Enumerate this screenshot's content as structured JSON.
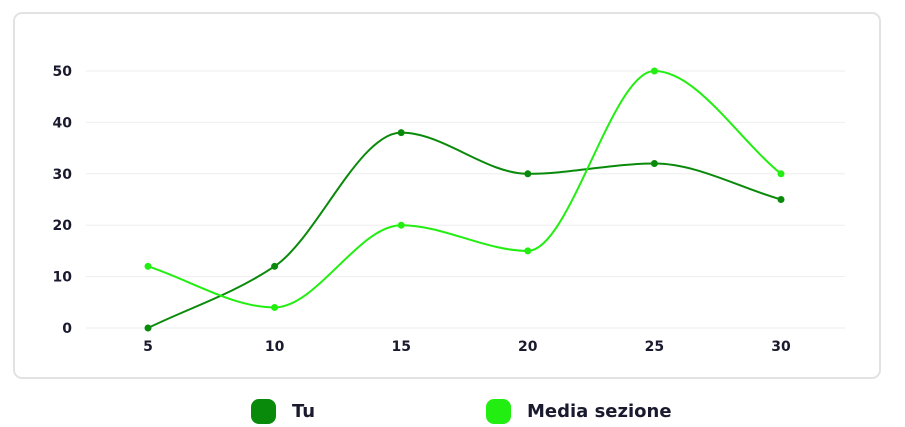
{
  "chart_data": {
    "type": "line",
    "x": [
      5,
      10,
      15,
      20,
      25,
      30
    ],
    "series": [
      {
        "name": "Tu",
        "color": "#0a8a0a",
        "values": [
          0,
          12,
          38,
          30,
          32,
          25
        ]
      },
      {
        "name": "Media sezione",
        "color": "#22ee11",
        "values": [
          12,
          4,
          20,
          15,
          50,
          30
        ]
      }
    ],
    "y_ticks": [
      0,
      10,
      20,
      30,
      40,
      50
    ],
    "x_ticks": [
      "5",
      "10",
      "15",
      "20",
      "25",
      "30"
    ],
    "ylim": [
      0,
      50
    ],
    "xlabel": "",
    "ylabel": "",
    "grid": true,
    "legend_position": "bottom",
    "curve": "smooth"
  }
}
